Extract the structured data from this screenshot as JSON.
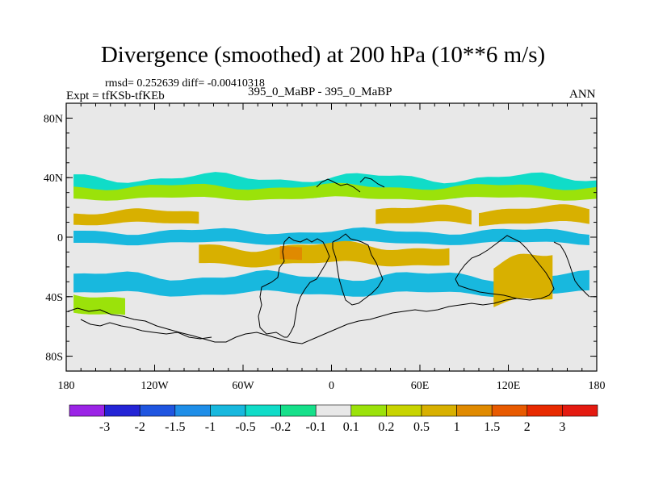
{
  "chart_data": {
    "type": "heatmap",
    "subtype": "filled contour map (world)",
    "title": "Divergence (smoothed) at 200 hPa (10**6 m/s)",
    "stats_line": "rmsd= 0.252639 diff= -0.00410318",
    "experiment": "Expt = tfKSb-tfKEb",
    "case": "395_0_MaBP - 395_0_MaBP",
    "season": "ANN",
    "x_axis": {
      "range": [
        -180,
        180
      ],
      "ticks": [
        -180,
        -120,
        -60,
        0,
        60,
        120,
        180
      ],
      "tick_labels": [
        "180",
        "120W",
        "60W",
        "0",
        "60E",
        "120E",
        "180"
      ]
    },
    "y_axis": {
      "range": [
        -90,
        90
      ],
      "ticks": [
        80,
        40,
        0,
        -40,
        -80
      ],
      "tick_labels": [
        "80N",
        "40N",
        "0",
        "40S",
        "80S"
      ]
    },
    "colorbar": {
      "labels": [
        "-3",
        "-2",
        "-1.5",
        "-1",
        "-0.5",
        "-0.2",
        "-0.1",
        "0.1",
        "0.2",
        "0.5",
        "1",
        "1.5",
        "2",
        "3"
      ],
      "colors": [
        "#9b24e6",
        "#2424d6",
        "#1f55e0",
        "#1e8ee8",
        "#18b8de",
        "#10dcc8",
        "#16e08a",
        "#e8e8e8",
        "#9be20a",
        "#c8d400",
        "#d8b000",
        "#e08a00",
        "#e85a00",
        "#e82a00",
        "#e41a10"
      ]
    },
    "regions": [
      {
        "level": "-0.2",
        "lat": 34,
        "lon_min": -175,
        "lon_max": 180,
        "dlat": 6
      },
      {
        "level": "0.1",
        "lat": 30,
        "lon_min": -175,
        "lon_max": 180,
        "dlat": 4
      },
      {
        "level": "0.5",
        "lat": 13,
        "lon_min": -175,
        "lon_max": -90,
        "dlat": 4
      },
      {
        "level": "0.5",
        "lat": 14,
        "lon_min": 30,
        "lon_max": 95,
        "dlat": 5
      },
      {
        "level": "0.5",
        "lat": 14,
        "lon_min": 100,
        "lon_max": 175,
        "dlat": 5
      },
      {
        "level": "-0.5",
        "lat": 0,
        "lon_min": -175,
        "lon_max": 175,
        "dlat": 4
      },
      {
        "level": "0.5",
        "lat": -12,
        "lon_min": -90,
        "lon_max": 80,
        "dlat": 6
      },
      {
        "level": "1",
        "lat": -12,
        "lon_min": -35,
        "lon_max": -20,
        "dlat": 4
      },
      {
        "level": "-0.5",
        "lat": -32,
        "lon_min": -175,
        "lon_max": 175,
        "dlat": 6
      },
      {
        "level": "0.5",
        "lat": -30,
        "lon_min": 110,
        "lon_max": 150,
        "dlat": 14
      },
      {
        "level": "0.1",
        "lat": -45,
        "lon_min": -175,
        "lon_max": -140,
        "dlat": 6
      }
    ]
  }
}
